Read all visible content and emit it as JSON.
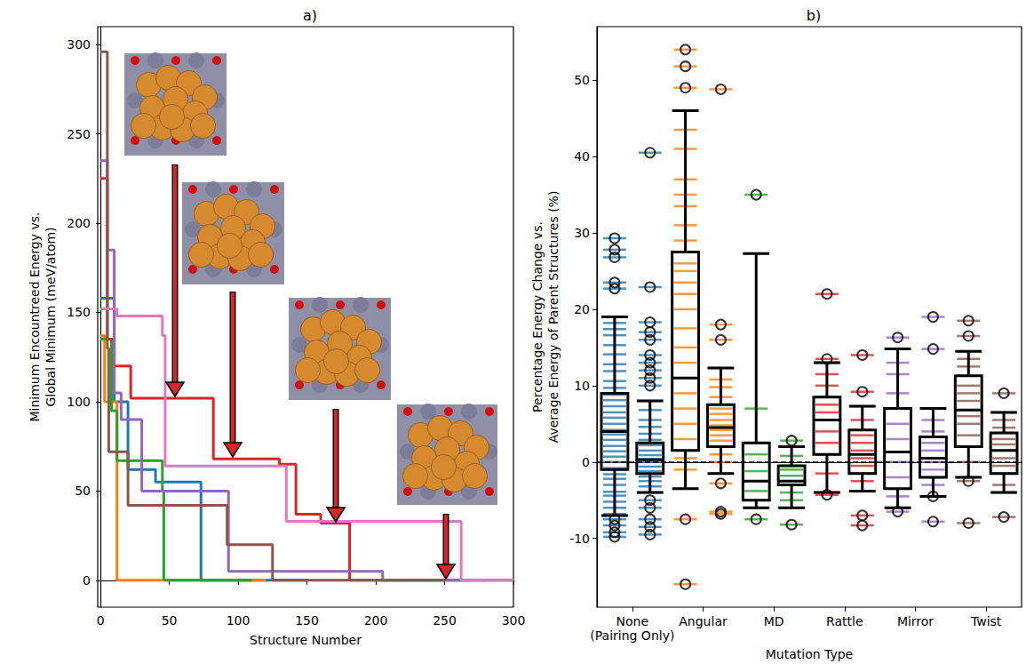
{
  "chart_data": [
    {
      "type": "line",
      "title": "a)",
      "x_label": "Structure Number",
      "y_label": "Minimum Encountreed Energy vs.\nGlobal Minimum (meV/atom)",
      "xlim": [
        -2,
        300
      ],
      "xticks": [
        0,
        50,
        100,
        150,
        200,
        250,
        300
      ],
      "ylim": [
        -15,
        310
      ],
      "yticks": [
        0,
        50,
        100,
        150,
        200,
        250,
        300
      ],
      "grid": false,
      "line_style": "step",
      "series": [
        {
          "color": "#1f77b4",
          "x": [
            0,
            10,
            20,
            40,
            73,
            150
          ],
          "values": [
            158,
            100,
            62,
            55,
            0,
            0
          ]
        },
        {
          "color": "#ff7f0e",
          "x": [
            0,
            3,
            12,
            120
          ],
          "values": [
            137,
            100,
            0,
            0
          ]
        },
        {
          "color": "#2ca02c",
          "x": [
            0,
            8,
            12,
            45,
            46,
            110
          ],
          "values": [
            135,
            95,
            67,
            50,
            0,
            0
          ]
        },
        {
          "color": "#d62728",
          "x": [
            0,
            5,
            10,
            22,
            82,
            130,
            142,
            160,
            181,
            300
          ],
          "values": [
            225,
            135,
            120,
            102,
            68,
            65,
            37,
            32,
            0,
            0
          ]
        },
        {
          "color": "#9467bd",
          "x": [
            0,
            5,
            10,
            15,
            30,
            93,
            200,
            205,
            280
          ],
          "values": [
            235,
            185,
            105,
            90,
            50,
            5,
            5,
            0,
            0
          ]
        },
        {
          "color": "#8c564b",
          "x": [
            0,
            5,
            6,
            20,
            92,
            125,
            250
          ],
          "values": [
            296,
            130,
            72,
            42,
            20,
            0,
            0
          ]
        },
        {
          "color": "#e377c2",
          "x": [
            0,
            12,
            45,
            47,
            135,
            262,
            300
          ],
          "values": [
            152,
            148,
            137,
            64,
            33,
            0,
            0
          ]
        }
      ]
    },
    {
      "type": "boxplot",
      "title": "b)",
      "x_label": "Mutation Type",
      "y_label": "Percentage Energy Change vs.\nAverage Energy of Parent Structures (%)",
      "categories": [
        "None\n(Pairing Only)",
        "Angular",
        "MD",
        "Rattle",
        "Mirror",
        "Twist"
      ],
      "ylim": [
        -19,
        57
      ],
      "yticks": [
        -10,
        0,
        10,
        20,
        30,
        40,
        50
      ],
      "grid": false,
      "reference_line": 0,
      "marker": "circle",
      "groups": [
        {
          "color": "#1f77b4",
          "boxes": [
            {
              "stats": [
                -7,
                -1,
                4,
                9,
                19
              ],
              "outliers": [
                29.3,
                27.8,
                26.8,
                23.5,
                22.7,
                -7.5,
                -8.3,
                -9.2,
                -9.8
              ],
              "points": [
                -6.8,
                -6,
                -5.2,
                -4.4,
                -3.9,
                -3,
                -2.2,
                -1.6,
                -0.8,
                0,
                0.7,
                1.4,
                2.1,
                2.9,
                3.6,
                4.2,
                5,
                5.8,
                6.5,
                7.3,
                8.1,
                8.8,
                9.7,
                10.6,
                11.9,
                12.8,
                14.1,
                15.3,
                16.6,
                17.4,
                18.2,
                19
              ]
            },
            {
              "stats": [
                -4,
                -1.5,
                0.3,
                2.5,
                8
              ],
              "outliers": [
                40.5,
                22.9,
                18.3,
                17,
                16,
                14,
                13,
                12,
                11,
                10,
                -5,
                -6,
                -7.5,
                -8.5,
                -9.5
              ],
              "points": [
                -4,
                -3.2,
                -2.5,
                -1.9,
                -1.2,
                -0.6,
                0,
                0.4,
                0.9,
                1.5,
                2.2,
                2.9,
                3.7,
                4.6,
                5.5,
                6.8,
                8
              ]
            }
          ]
        },
        {
          "color": "#ff7f0e",
          "boxes": [
            {
              "stats": [
                -3.5,
                1.5,
                11,
                27.5,
                46
              ],
              "outliers": [
                54,
                51.8,
                49,
                -7.5,
                -16
              ],
              "points": [
                -3.5,
                -1,
                0.5,
                1.5,
                3,
                5,
                7,
                9,
                11,
                13,
                15,
                17.5,
                20,
                22,
                23.5,
                25,
                26,
                27.5,
                29,
                31,
                33.5,
                35,
                37,
                41,
                43.5,
                46
              ]
            },
            {
              "stats": [
                -1.5,
                2,
                4.5,
                7.5,
                12.3
              ],
              "outliers": [
                48.8,
                18,
                16,
                -2.8,
                -6.5,
                -6.8
              ],
              "points": [
                -1.5,
                0,
                1,
                2,
                2.8,
                3.5,
                4.2,
                4.8,
                5.5,
                6.3,
                7,
                7.5,
                8.5,
                9.8,
                10.8,
                12.3
              ]
            }
          ]
        },
        {
          "color": "#2ca02c",
          "boxes": [
            {
              "stats": [
                -6,
                -5,
                -2.5,
                2.5,
                27.3
              ],
              "outliers": [
                35,
                -7.5
              ],
              "points": [
                -6,
                -5,
                -3.8,
                -2.5,
                -1.2,
                1,
                2.5,
                7,
                27.3
              ]
            },
            {
              "stats": [
                -6,
                -3,
                -2.5,
                -0.5,
                2
              ],
              "outliers": [
                2.8,
                -8.2
              ],
              "points": [
                -6,
                -5,
                -4,
                -3,
                -2.5,
                -1.8,
                -1,
                -0.5,
                0.8,
                2
              ]
            }
          ]
        },
        {
          "color": "#d62728",
          "boxes": [
            {
              "stats": [
                -4,
                1,
                5.5,
                8.5,
                13
              ],
              "outliers": [
                22,
                13.5,
                -4.3
              ],
              "points": [
                -4,
                -1.5,
                1,
                2.5,
                4,
                5.5,
                6.5,
                7.5,
                8.5,
                10,
                11.5,
                13
              ]
            },
            {
              "stats": [
                -3.8,
                -1.5,
                1,
                4.2,
                7.3
              ],
              "outliers": [
                14,
                9.2,
                -7,
                -8.3
              ],
              "points": [
                -3.8,
                -2.5,
                -1.5,
                -0.5,
                0.5,
                1.5,
                2.5,
                3.5,
                4.2,
                5.5,
                7.3
              ]
            }
          ]
        },
        {
          "color": "#9467bd",
          "boxes": [
            {
              "stats": [
                -6,
                -3.5,
                1.3,
                7,
                14.8
              ],
              "outliers": [
                16.3,
                -6.5
              ],
              "points": [
                -6,
                -4.5,
                -3.5,
                -2,
                0,
                1.3,
                3,
                5,
                7,
                9,
                11.5,
                13,
                14.8
              ]
            },
            {
              "stats": [
                -4.5,
                -2,
                0.5,
                3.3,
                7
              ],
              "outliers": [
                19,
                14.8,
                -4.5,
                -7.8
              ],
              "points": [
                -4.5,
                -3,
                -2,
                -1,
                0,
                0.5,
                1.5,
                2.5,
                3.3,
                4,
                5.5,
                7
              ]
            }
          ]
        },
        {
          "color": "#8c564b",
          "boxes": [
            {
              "stats": [
                -2,
                2,
                6.8,
                11.3,
                14.5
              ],
              "outliers": [
                18.5,
                16.5,
                -2.5,
                -8
              ],
              "points": [
                -2,
                0,
                2,
                3.5,
                5,
                6,
                6.8,
                8,
                9,
                10,
                11.3,
                12.5,
                13.5,
                14.5
              ]
            },
            {
              "stats": [
                -4,
                -1.5,
                1.5,
                3.8,
                6.5
              ],
              "outliers": [
                9,
                -7.2
              ],
              "points": [
                -4,
                -3,
                -1.5,
                -0.5,
                0.5,
                1.5,
                2.3,
                3,
                3.8,
                4.5,
                5.5,
                6.5
              ]
            }
          ]
        }
      ]
    }
  ]
}
